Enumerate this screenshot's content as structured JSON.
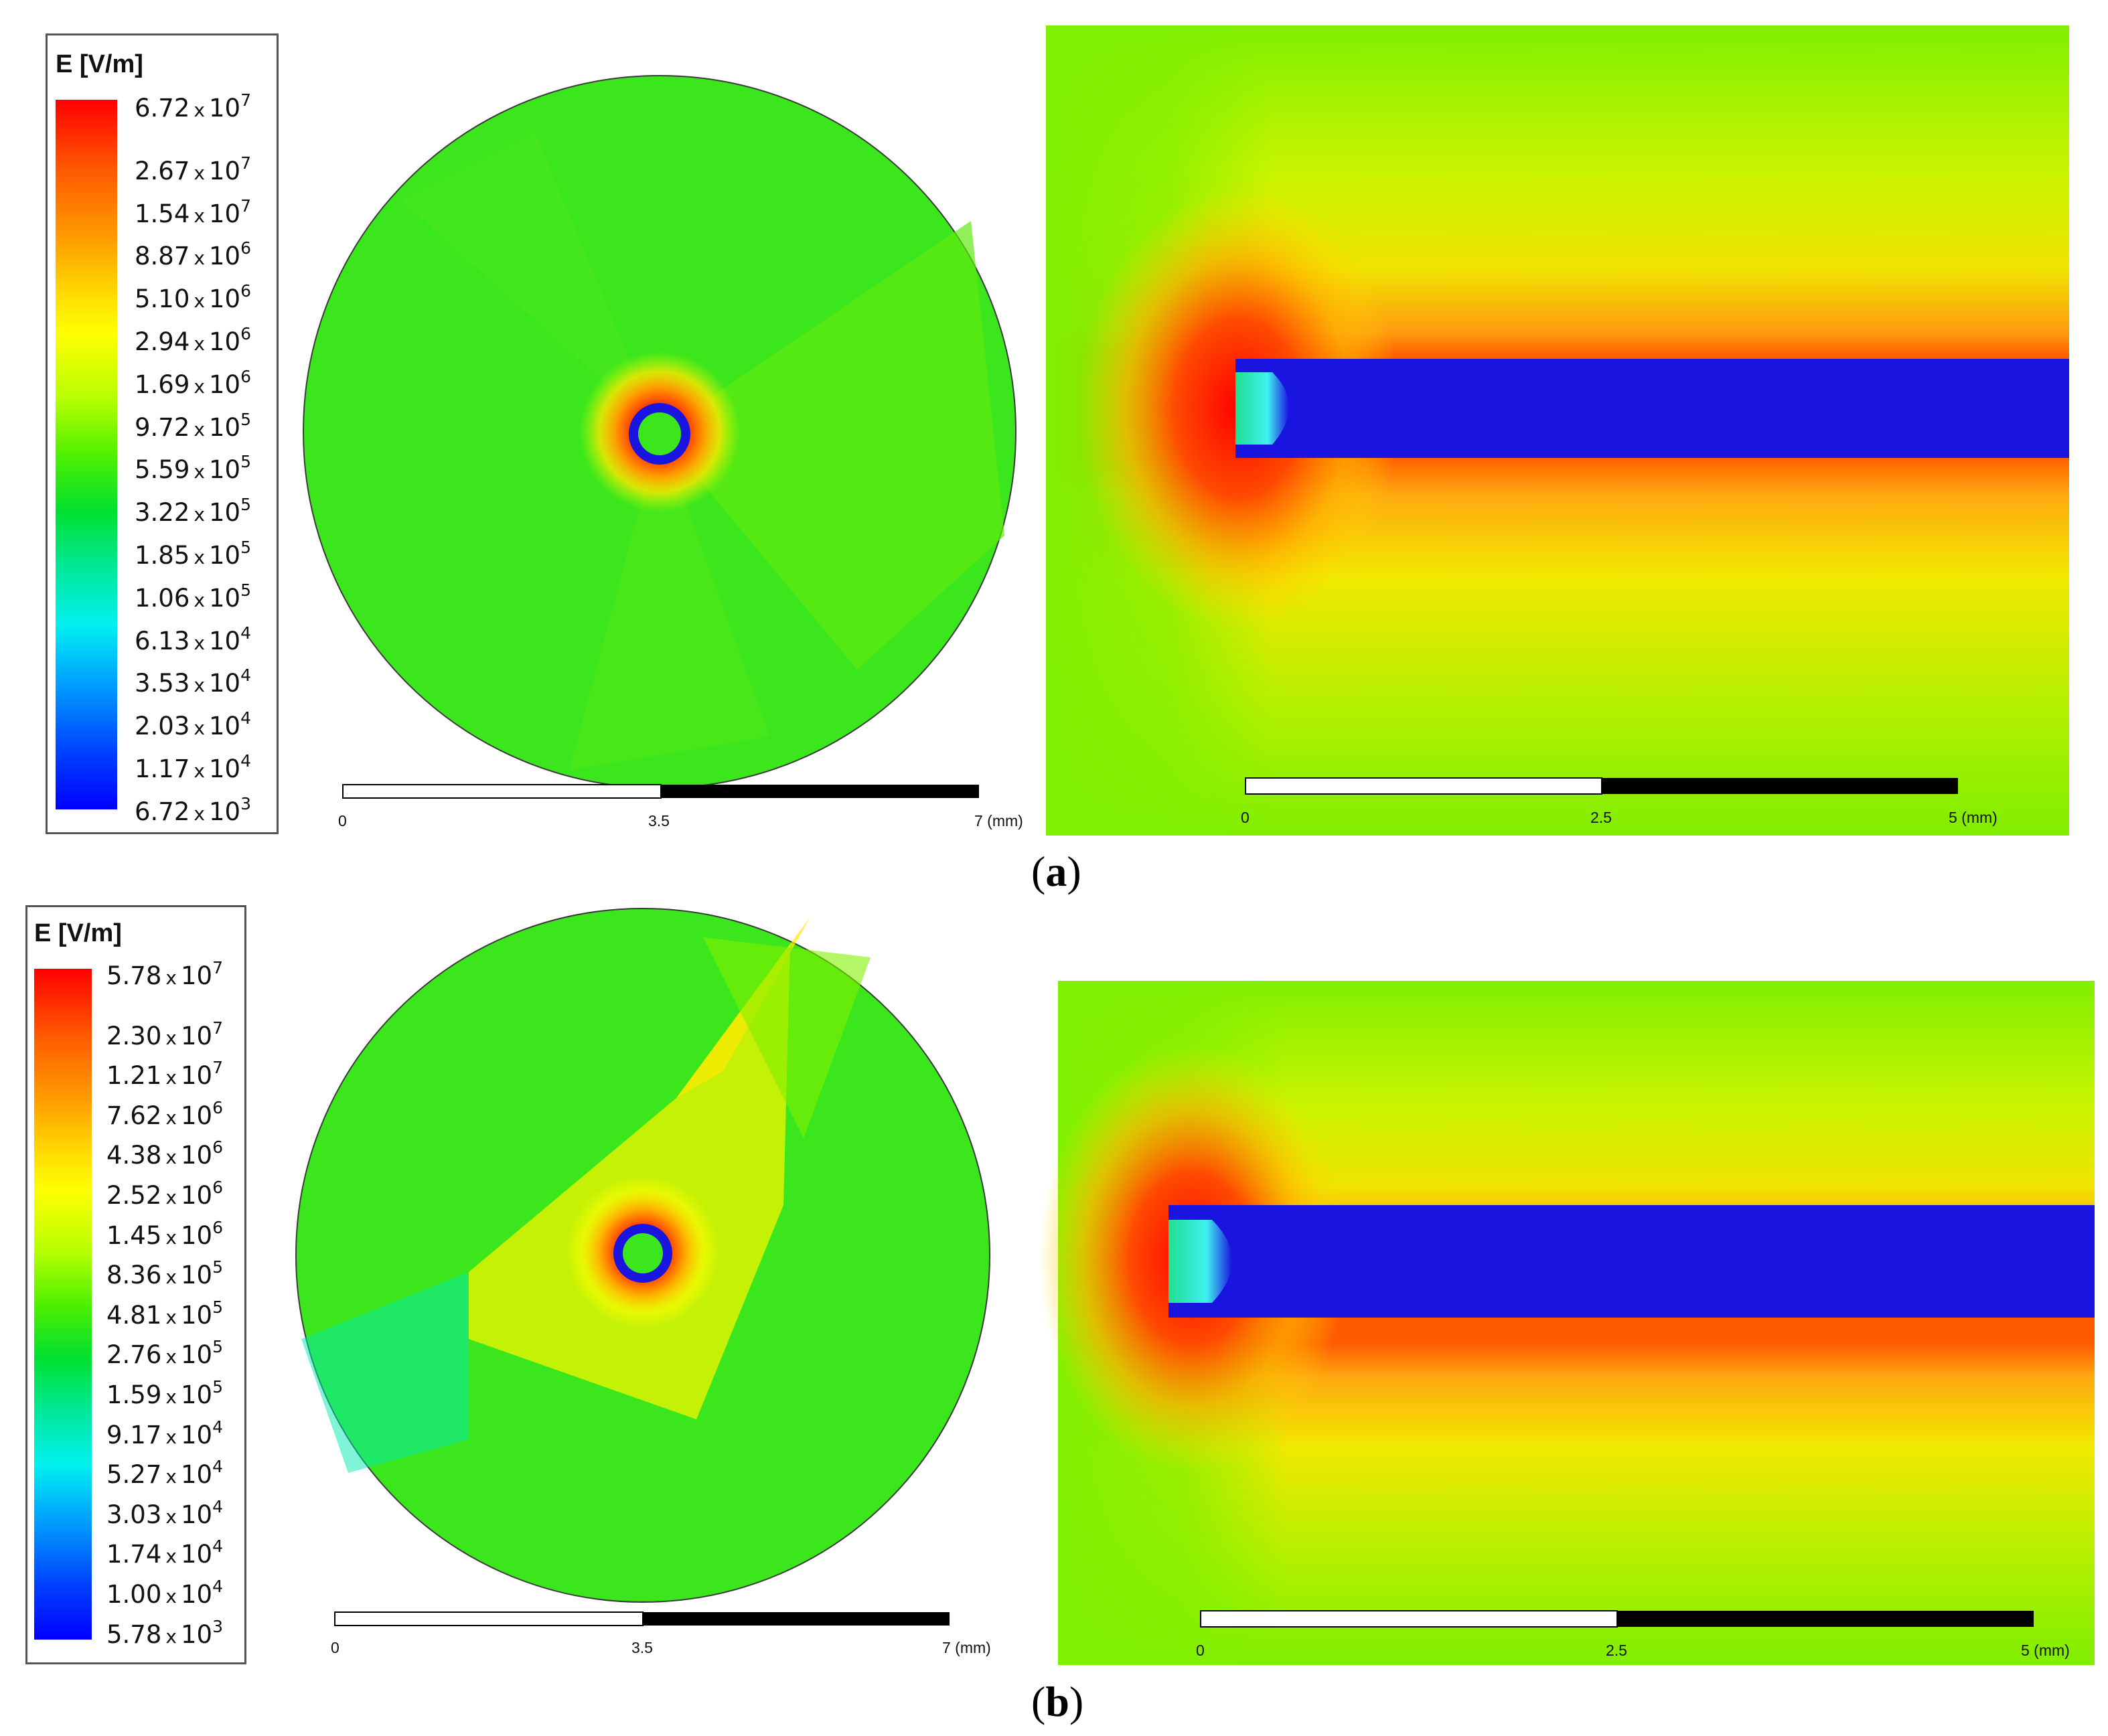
{
  "panels": [
    {
      "caption_letter": "a",
      "legend": {
        "title": "E [V/m]",
        "labels": [
          {
            "m": "6.72",
            "e": "7"
          },
          {
            "m": "2.67",
            "e": "7"
          },
          {
            "m": "1.54",
            "e": "7"
          },
          {
            "m": "8.87",
            "e": "6"
          },
          {
            "m": "5.10",
            "e": "6"
          },
          {
            "m": "2.94",
            "e": "6"
          },
          {
            "m": "1.69",
            "e": "6"
          },
          {
            "m": "9.72",
            "e": "5"
          },
          {
            "m": "5.59",
            "e": "5"
          },
          {
            "m": "3.22",
            "e": "5"
          },
          {
            "m": "1.85",
            "e": "5"
          },
          {
            "m": "1.06",
            "e": "5"
          },
          {
            "m": "6.13",
            "e": "4"
          },
          {
            "m": "3.53",
            "e": "4"
          },
          {
            "m": "2.03",
            "e": "4"
          },
          {
            "m": "1.17",
            "e": "4"
          },
          {
            "m": "6.72",
            "e": "3"
          }
        ]
      },
      "cross_section_scale": {
        "ticks": [
          "0",
          "3.5",
          "7 (mm)"
        ]
      },
      "longitudinal_scale": {
        "ticks": [
          "0",
          "2.5",
          "5 (mm)"
        ]
      }
    },
    {
      "caption_letter": "b",
      "legend": {
        "title": "E [V/m]",
        "labels": [
          {
            "m": "5.78",
            "e": "7"
          },
          {
            "m": "2.30",
            "e": "7"
          },
          {
            "m": "1.21",
            "e": "7"
          },
          {
            "m": "7.62",
            "e": "6"
          },
          {
            "m": "4.38",
            "e": "6"
          },
          {
            "m": "2.52",
            "e": "6"
          },
          {
            "m": "1.45",
            "e": "6"
          },
          {
            "m": "8.36",
            "e": "5"
          },
          {
            "m": "4.81",
            "e": "5"
          },
          {
            "m": "2.76",
            "e": "5"
          },
          {
            "m": "1.59",
            "e": "5"
          },
          {
            "m": "9.17",
            "e": "4"
          },
          {
            "m": "5.27",
            "e": "4"
          },
          {
            "m": "3.03",
            "e": "4"
          },
          {
            "m": "1.74",
            "e": "4"
          },
          {
            "m": "1.00",
            "e": "4"
          },
          {
            "m": "5.78",
            "e": "3"
          }
        ]
      },
      "cross_section_scale": {
        "ticks": [
          "0",
          "3.5",
          "7 (mm)"
        ]
      },
      "longitudinal_scale": {
        "ticks": [
          "0",
          "2.5",
          "5 (mm)"
        ]
      }
    }
  ],
  "times_symbol": "x",
  "base": "10",
  "colormap": [
    "#ff0000",
    "#ff7a00",
    "#ffd200",
    "#ffff00",
    "#b4ff00",
    "#3cf000",
    "#00e050",
    "#00f0e0",
    "#00a0ff",
    "#0030ff",
    "#0000ff"
  ],
  "colors": {
    "dielectric_green": "#3ce61c",
    "background_green": "#7ff000",
    "conductor_blue": "#1a14e0",
    "hot_red": "#ff1e00"
  }
}
